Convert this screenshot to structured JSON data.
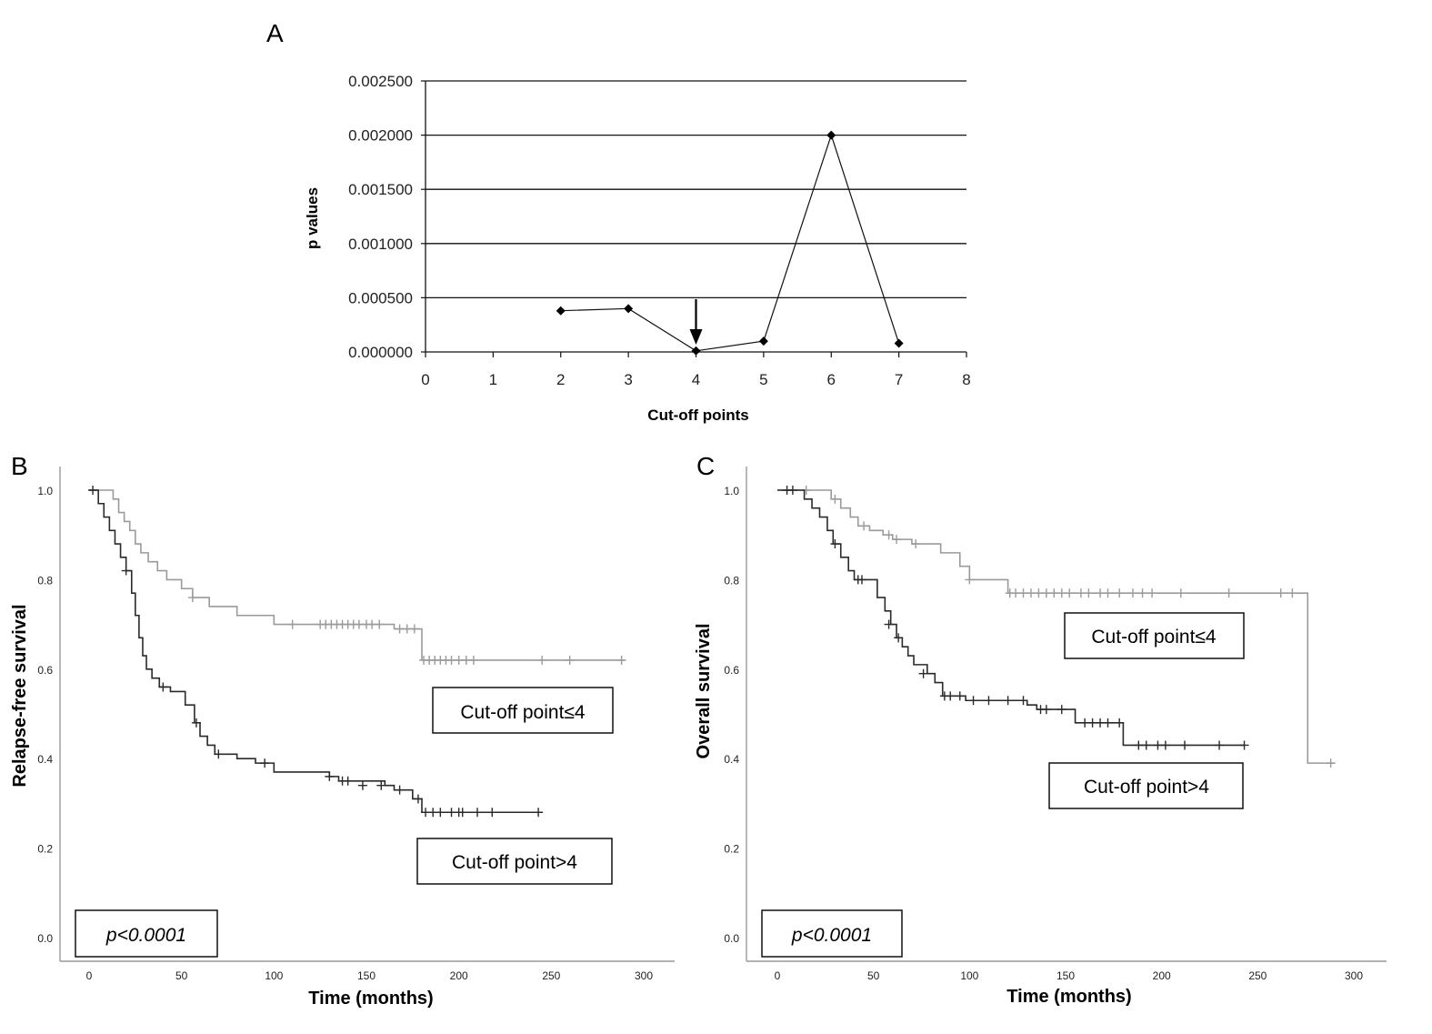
{
  "chart_data": [
    {
      "panel": "A",
      "type": "line",
      "xlabel": "Cut-off points",
      "ylabel": "p values",
      "xlim": [
        0,
        8
      ],
      "ylim": [
        0,
        0.0025
      ],
      "xticks": [
        "0",
        "1",
        "2",
        "3",
        "4",
        "5",
        "6",
        "7",
        "8"
      ],
      "yticks": [
        "0.000000",
        "0.000500",
        "0.001000",
        "0.001500",
        "0.002000",
        "0.002500"
      ],
      "x": [
        2,
        3,
        4,
        5,
        6,
        7
      ],
      "y": [
        0.00038,
        0.0004,
        1e-05,
        0.0001,
        0.002,
        8e-05
      ],
      "annotation": {
        "type": "arrow",
        "x": 4
      }
    },
    {
      "panel": "B",
      "type": "line",
      "xlabel": "Time (months)",
      "ylabel": "Relapse-free survival",
      "xlim": [
        0,
        300
      ],
      "ylim": [
        0,
        1
      ],
      "xticks": [
        "0",
        "50",
        "100",
        "150",
        "200",
        "250",
        "300"
      ],
      "yticks": [
        "0.0",
        "0.2",
        "0.4",
        "0.6",
        "0.8",
        "1.0"
      ],
      "pvalue": "p<0.0001",
      "series": [
        {
          "name": "Cut-off point≤4",
          "color": "#9a9a9a",
          "steps": [
            [
              0,
              1.0
            ],
            [
              10,
              1.0
            ],
            [
              13,
              0.98
            ],
            [
              16,
              0.95
            ],
            [
              19,
              0.93
            ],
            [
              22,
              0.91
            ],
            [
              25,
              0.88
            ],
            [
              28,
              0.86
            ],
            [
              32,
              0.84
            ],
            [
              37,
              0.82
            ],
            [
              42,
              0.8
            ],
            [
              50,
              0.78
            ],
            [
              56,
              0.76
            ],
            [
              65,
              0.74
            ],
            [
              80,
              0.72
            ],
            [
              100,
              0.7
            ],
            [
              165,
              0.69
            ],
            [
              180,
              0.62
            ],
            [
              290,
              0.62
            ]
          ],
          "censor": [
            [
              56,
              0.76
            ],
            [
              110,
              0.7
            ],
            [
              125,
              0.7
            ],
            [
              128,
              0.7
            ],
            [
              131,
              0.7
            ],
            [
              134,
              0.7
            ],
            [
              137,
              0.7
            ],
            [
              140,
              0.7
            ],
            [
              143,
              0.7
            ],
            [
              146,
              0.7
            ],
            [
              150,
              0.7
            ],
            [
              153,
              0.7
            ],
            [
              157,
              0.7
            ],
            [
              168,
              0.69
            ],
            [
              172,
              0.69
            ],
            [
              176,
              0.69
            ],
            [
              181,
              0.62
            ],
            [
              184,
              0.62
            ],
            [
              187,
              0.62
            ],
            [
              190,
              0.62
            ],
            [
              193,
              0.62
            ],
            [
              196,
              0.62
            ],
            [
              200,
              0.62
            ],
            [
              204,
              0.62
            ],
            [
              208,
              0.62
            ],
            [
              245,
              0.62
            ],
            [
              260,
              0.62
            ],
            [
              288,
              0.62
            ]
          ]
        },
        {
          "name": "Cut-off point>4",
          "color": "#2a2a2a",
          "steps": [
            [
              0,
              1.0
            ],
            [
              5,
              0.97
            ],
            [
              8,
              0.94
            ],
            [
              11,
              0.91
            ],
            [
              14,
              0.88
            ],
            [
              17,
              0.85
            ],
            [
              20,
              0.82
            ],
            [
              23,
              0.77
            ],
            [
              25,
              0.72
            ],
            [
              27,
              0.67
            ],
            [
              29,
              0.63
            ],
            [
              31,
              0.6
            ],
            [
              34,
              0.58
            ],
            [
              38,
              0.56
            ],
            [
              44,
              0.55
            ],
            [
              52,
              0.52
            ],
            [
              57,
              0.48
            ],
            [
              60,
              0.45
            ],
            [
              64,
              0.43
            ],
            [
              68,
              0.41
            ],
            [
              80,
              0.4
            ],
            [
              90,
              0.39
            ],
            [
              100,
              0.37
            ],
            [
              130,
              0.36
            ],
            [
              135,
              0.35
            ],
            [
              160,
              0.34
            ],
            [
              165,
              0.33
            ],
            [
              175,
              0.31
            ],
            [
              180,
              0.28
            ],
            [
              243,
              0.28
            ]
          ],
          "censor": [
            [
              2,
              1.0
            ],
            [
              20,
              0.82
            ],
            [
              40,
              0.56
            ],
            [
              58,
              0.48
            ],
            [
              70,
              0.41
            ],
            [
              95,
              0.39
            ],
            [
              130,
              0.36
            ],
            [
              137,
              0.35
            ],
            [
              140,
              0.35
            ],
            [
              148,
              0.34
            ],
            [
              158,
              0.34
            ],
            [
              168,
              0.33
            ],
            [
              178,
              0.31
            ],
            [
              182,
              0.28
            ],
            [
              186,
              0.28
            ],
            [
              190,
              0.28
            ],
            [
              196,
              0.28
            ],
            [
              200,
              0.28
            ],
            [
              202,
              0.28
            ],
            [
              210,
              0.28
            ],
            [
              218,
              0.28
            ],
            [
              243,
              0.28
            ]
          ]
        }
      ]
    },
    {
      "panel": "C",
      "type": "line",
      "xlabel": "Time (months)",
      "ylabel": "Overall survival",
      "xlim": [
        0,
        300
      ],
      "ylim": [
        0,
        1
      ],
      "xticks": [
        "0",
        "50",
        "100",
        "150",
        "200",
        "250",
        "300"
      ],
      "yticks": [
        "0.0",
        "0.2",
        "0.4",
        "0.6",
        "0.8",
        "1.0"
      ],
      "pvalue": "p<0.0001",
      "series": [
        {
          "name": "Cut-off point≤4",
          "color": "#9a9a9a",
          "steps": [
            [
              0,
              1.0
            ],
            [
              20,
              1.0
            ],
            [
              28,
              0.98
            ],
            [
              33,
              0.96
            ],
            [
              38,
              0.94
            ],
            [
              42,
              0.92
            ],
            [
              48,
              0.91
            ],
            [
              55,
              0.9
            ],
            [
              60,
              0.89
            ],
            [
              70,
              0.88
            ],
            [
              85,
              0.86
            ],
            [
              95,
              0.83
            ],
            [
              100,
              0.8
            ],
            [
              120,
              0.77
            ],
            [
              275,
              0.77
            ],
            [
              276,
              0.39
            ],
            [
              290,
              0.39
            ]
          ],
          "censor": [
            [
              15,
              1.0
            ],
            [
              30,
              0.98
            ],
            [
              45,
              0.92
            ],
            [
              58,
              0.9
            ],
            [
              62,
              0.89
            ],
            [
              72,
              0.88
            ],
            [
              100,
              0.8
            ],
            [
              121,
              0.77
            ],
            [
              124,
              0.77
            ],
            [
              128,
              0.77
            ],
            [
              132,
              0.77
            ],
            [
              136,
              0.77
            ],
            [
              140,
              0.77
            ],
            [
              144,
              0.77
            ],
            [
              148,
              0.77
            ],
            [
              152,
              0.77
            ],
            [
              158,
              0.77
            ],
            [
              162,
              0.77
            ],
            [
              168,
              0.77
            ],
            [
              172,
              0.77
            ],
            [
              178,
              0.77
            ],
            [
              185,
              0.77
            ],
            [
              190,
              0.77
            ],
            [
              195,
              0.77
            ],
            [
              210,
              0.77
            ],
            [
              235,
              0.77
            ],
            [
              262,
              0.77
            ],
            [
              268,
              0.77
            ],
            [
              288,
              0.39
            ]
          ]
        },
        {
          "name": "Cut-off point>4",
          "color": "#2a2a2a",
          "steps": [
            [
              0,
              1.0
            ],
            [
              10,
              1.0
            ],
            [
              14,
              0.98
            ],
            [
              18,
              0.96
            ],
            [
              22,
              0.94
            ],
            [
              26,
              0.91
            ],
            [
              29,
              0.88
            ],
            [
              33,
              0.85
            ],
            [
              37,
              0.82
            ],
            [
              40,
              0.8
            ],
            [
              48,
              0.8
            ],
            [
              52,
              0.76
            ],
            [
              56,
              0.73
            ],
            [
              59,
              0.7
            ],
            [
              62,
              0.67
            ],
            [
              65,
              0.65
            ],
            [
              68,
              0.63
            ],
            [
              71,
              0.61
            ],
            [
              78,
              0.59
            ],
            [
              82,
              0.57
            ],
            [
              86,
              0.54
            ],
            [
              98,
              0.53
            ],
            [
              130,
              0.52
            ],
            [
              135,
              0.51
            ],
            [
              155,
              0.48
            ],
            [
              180,
              0.43
            ],
            [
              243,
              0.43
            ]
          ],
          "censor": [
            [
              5,
              1.0
            ],
            [
              8,
              1.0
            ],
            [
              30,
              0.88
            ],
            [
              42,
              0.8
            ],
            [
              44,
              0.8
            ],
            [
              58,
              0.7
            ],
            [
              63,
              0.67
            ],
            [
              76,
              0.59
            ],
            [
              87,
              0.54
            ],
            [
              90,
              0.54
            ],
            [
              95,
              0.54
            ],
            [
              102,
              0.53
            ],
            [
              110,
              0.53
            ],
            [
              120,
              0.53
            ],
            [
              128,
              0.53
            ],
            [
              137,
              0.51
            ],
            [
              140,
              0.51
            ],
            [
              148,
              0.51
            ],
            [
              160,
              0.48
            ],
            [
              164,
              0.48
            ],
            [
              168,
              0.48
            ],
            [
              172,
              0.48
            ],
            [
              178,
              0.48
            ],
            [
              188,
              0.43
            ],
            [
              192,
              0.43
            ],
            [
              198,
              0.43
            ],
            [
              202,
              0.43
            ],
            [
              212,
              0.43
            ],
            [
              230,
              0.43
            ],
            [
              243,
              0.43
            ]
          ]
        }
      ]
    }
  ]
}
